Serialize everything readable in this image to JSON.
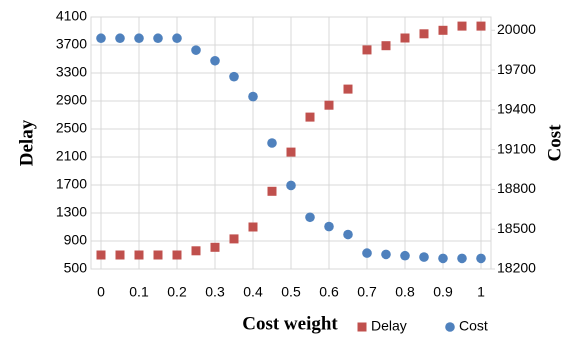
{
  "chart_data": {
    "type": "scatter",
    "x_label": "Cost weight",
    "y_label": "Delay",
    "y2_label": "Cost",
    "x": [
      0,
      0.05,
      0.1,
      0.15,
      0.2,
      0.25,
      0.3,
      0.35,
      0.4,
      0.45,
      0.5,
      0.55,
      0.6,
      0.65,
      0.7,
      0.75,
      0.8,
      0.85,
      0.9,
      0.95,
      1
    ],
    "series": [
      {
        "name": "Delay",
        "color": "#c0504d",
        "marker": "square",
        "axis": "y",
        "values": [
          700,
          700,
          700,
          700,
          700,
          760,
          810,
          930,
          1100,
          1610,
          2170,
          2670,
          2840,
          3070,
          3630,
          3690,
          3800,
          3860,
          3910,
          3970,
          3970
        ]
      },
      {
        "name": "Cost",
        "color": "#4f81bd",
        "marker": "circle",
        "axis": "y2",
        "values": [
          19940,
          19940,
          19940,
          19940,
          19940,
          19850,
          19770,
          19650,
          19500,
          19150,
          18830,
          18590,
          18520,
          18460,
          18320,
          18310,
          18300,
          18290,
          18280,
          18280,
          18280
        ]
      }
    ],
    "xlim": [
      0,
      1
    ],
    "xticks": [
      0,
      0.1,
      0.2,
      0.3,
      0.4,
      0.5,
      0.6,
      0.7,
      0.8,
      0.9,
      1
    ],
    "ylim": [
      500,
      4100
    ],
    "yticks": [
      500,
      900,
      1300,
      1700,
      2100,
      2500,
      2900,
      3300,
      3700,
      4100
    ],
    "y2lim": [
      18200,
      20100
    ],
    "y2ticks": [
      18200,
      18500,
      18800,
      19100,
      19400,
      19700,
      20000
    ],
    "grid": true,
    "legend": "bottom-right"
  }
}
